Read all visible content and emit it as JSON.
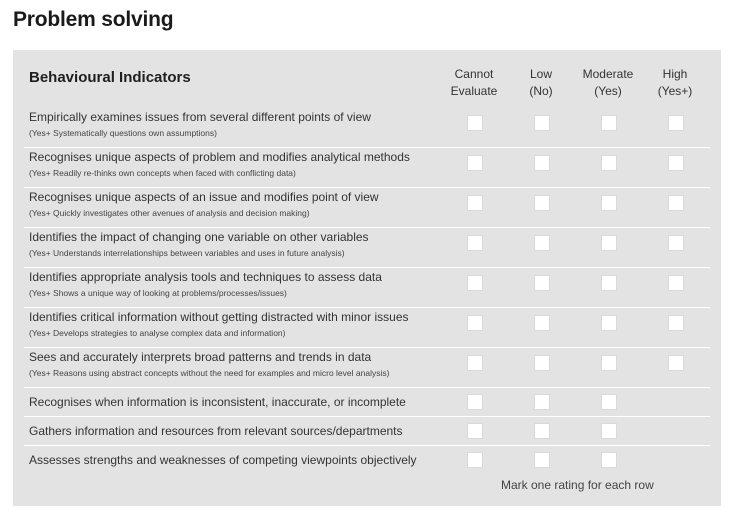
{
  "title": "Problem solving",
  "header": {
    "title": "Behavioural Indicators",
    "columns": [
      {
        "line1": "Cannot",
        "line2": "Evaluate"
      },
      {
        "line1": "Low",
        "line2": "(No)"
      },
      {
        "line1": "Moderate",
        "line2": "(Yes)"
      },
      {
        "line1": "High",
        "line2": "(Yes+)"
      }
    ]
  },
  "rows": [
    {
      "text": "Empirically examines issues from several different points of view",
      "sub": "(Yes+ Systematically questions own assumptions)",
      "options": 4
    },
    {
      "text": "Recognises unique aspects of problem and modifies analytical methods",
      "sub": "(Yes+ Readily re-thinks own concepts when faced with conflicting data)",
      "options": 4
    },
    {
      "text": "Recognises unique aspects of an issue and modifies point of view",
      "sub": "(Yes+ Quickly investigates other avenues of analysis and decision making)",
      "options": 4
    },
    {
      "text": "Identifies the impact of changing one variable on other variables",
      "sub": "(Yes+ Understands interrelationships between variables and uses in future analysis)",
      "options": 4
    },
    {
      "text": "Identifies appropriate analysis tools and techniques to assess data",
      "sub": "(Yes+ Shows a unique way of looking at problems/processes/issues)",
      "options": 4
    },
    {
      "text": "Identifies critical information without getting distracted with minor issues",
      "sub": "(Yes+ Develops strategies to analyse complex data and information)",
      "options": 4
    },
    {
      "text": "Sees and accurately interprets broad patterns and trends in data",
      "sub": "(Yes+ Reasons using abstract concepts without the need for examples and micro level analysis)",
      "options": 4
    },
    {
      "text": "Recognises when information is inconsistent, inaccurate, or incomplete",
      "sub": "",
      "options": 3
    },
    {
      "text": "Gathers information and resources from relevant sources/departments",
      "sub": "",
      "options": 3
    },
    {
      "text": "Assesses strengths and weaknesses of competing viewpoints objectively",
      "sub": "",
      "options": 3
    }
  ],
  "footer_note": "Mark one rating for each row"
}
